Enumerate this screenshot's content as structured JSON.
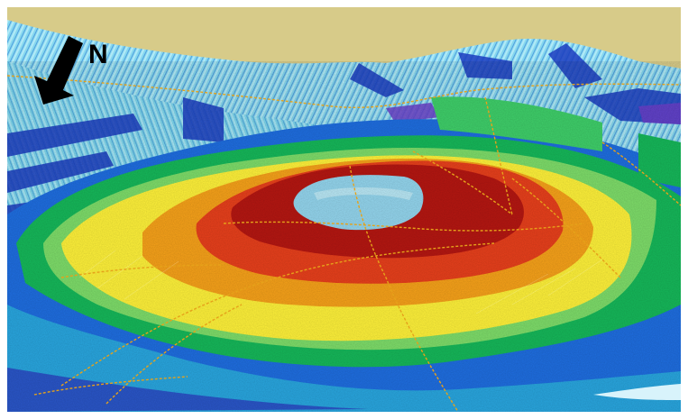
{
  "map": {
    "north_label": "N",
    "colors": {
      "sky": "#d7cb89",
      "background_cyan": "#7ed6ec",
      "deep_blue": "#1b3cc0",
      "blue": "#1f6ee0",
      "green": "#16b85a",
      "light_green": "#7edd6a",
      "yellow": "#fff23a",
      "orange": "#f7a21a",
      "red": "#e8401c",
      "dark_red": "#b51712",
      "summit_cyan": "#94d6ee",
      "tracklines": "#e6a21a"
    }
  }
}
